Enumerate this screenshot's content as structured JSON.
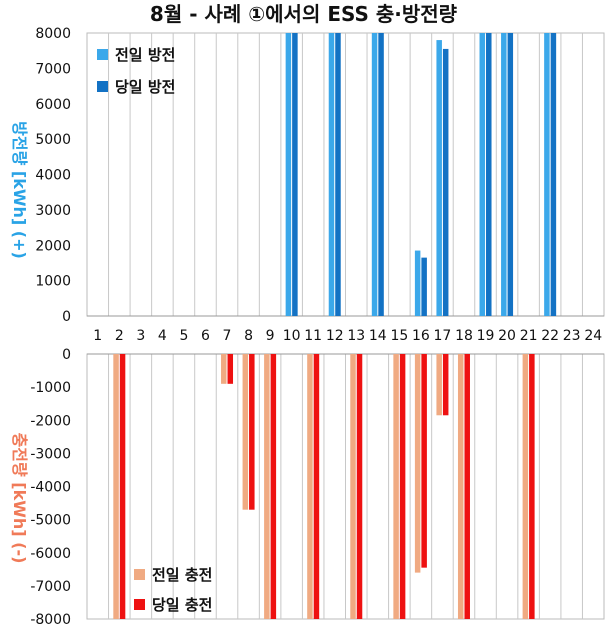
{
  "title": "8월 - 사례 ①에서의 ESS 충·방전량",
  "colors": {
    "prev_discharge": "#3BA8EA",
    "curr_discharge": "#1372C4",
    "prev_charge": "#F0AA82",
    "curr_charge": "#EE1111"
  },
  "chart_data": [
    {
      "type": "bar",
      "name": "discharge",
      "categories": [
        "1",
        "2",
        "3",
        "4",
        "5",
        "6",
        "7",
        "8",
        "9",
        "10",
        "11",
        "12",
        "13",
        "14",
        "15",
        "16",
        "17",
        "18",
        "19",
        "20",
        "21",
        "22",
        "23",
        "24"
      ],
      "ylim": [
        0,
        8000
      ],
      "yticks": [
        "0",
        "1000",
        "2000",
        "3000",
        "4000",
        "5000",
        "6000",
        "7000",
        "8000"
      ],
      "ylabel_main": "방전량",
      "ylabel_unit": "[kWh] (+)",
      "series": [
        {
          "name": "전일 방전",
          "values": [
            0,
            0,
            0,
            0,
            0,
            0,
            0,
            0,
            0,
            8000,
            0,
            8000,
            0,
            8000,
            0,
            1850,
            7800,
            0,
            8000,
            8000,
            0,
            8000,
            0,
            0
          ]
        },
        {
          "name": "당일 방전",
          "values": [
            0,
            0,
            0,
            0,
            0,
            0,
            0,
            0,
            0,
            8000,
            0,
            8000,
            0,
            8000,
            0,
            1650,
            7550,
            0,
            8000,
            8000,
            0,
            8000,
            0,
            0
          ]
        }
      ]
    },
    {
      "type": "bar",
      "name": "charge",
      "categories": [
        "1",
        "2",
        "3",
        "4",
        "5",
        "6",
        "7",
        "8",
        "9",
        "10",
        "11",
        "12",
        "13",
        "14",
        "15",
        "16",
        "17",
        "18",
        "19",
        "20",
        "21",
        "22",
        "23",
        "24"
      ],
      "ylim": [
        -8000,
        0
      ],
      "yticks": [
        "0",
        "-1000",
        "-2000",
        "-3000",
        "-4000",
        "-5000",
        "-6000",
        "-7000",
        "-8000"
      ],
      "ylabel_main": "충전량",
      "ylabel_unit": "[kWh] (-)",
      "series": [
        {
          "name": "전일 충전",
          "values": [
            0,
            -8000,
            0,
            0,
            0,
            0,
            -900,
            -4700,
            -8000,
            0,
            -8000,
            0,
            -8000,
            0,
            -8000,
            -6600,
            -1850,
            -8000,
            0,
            0,
            -8000,
            0,
            0,
            0
          ]
        },
        {
          "name": "당일 충전",
          "values": [
            0,
            -8000,
            0,
            0,
            0,
            0,
            -900,
            -4700,
            -8000,
            0,
            -8000,
            0,
            -8000,
            0,
            -8000,
            -6450,
            -1850,
            -8000,
            0,
            0,
            -8000,
            0,
            0,
            0
          ]
        }
      ]
    }
  ]
}
